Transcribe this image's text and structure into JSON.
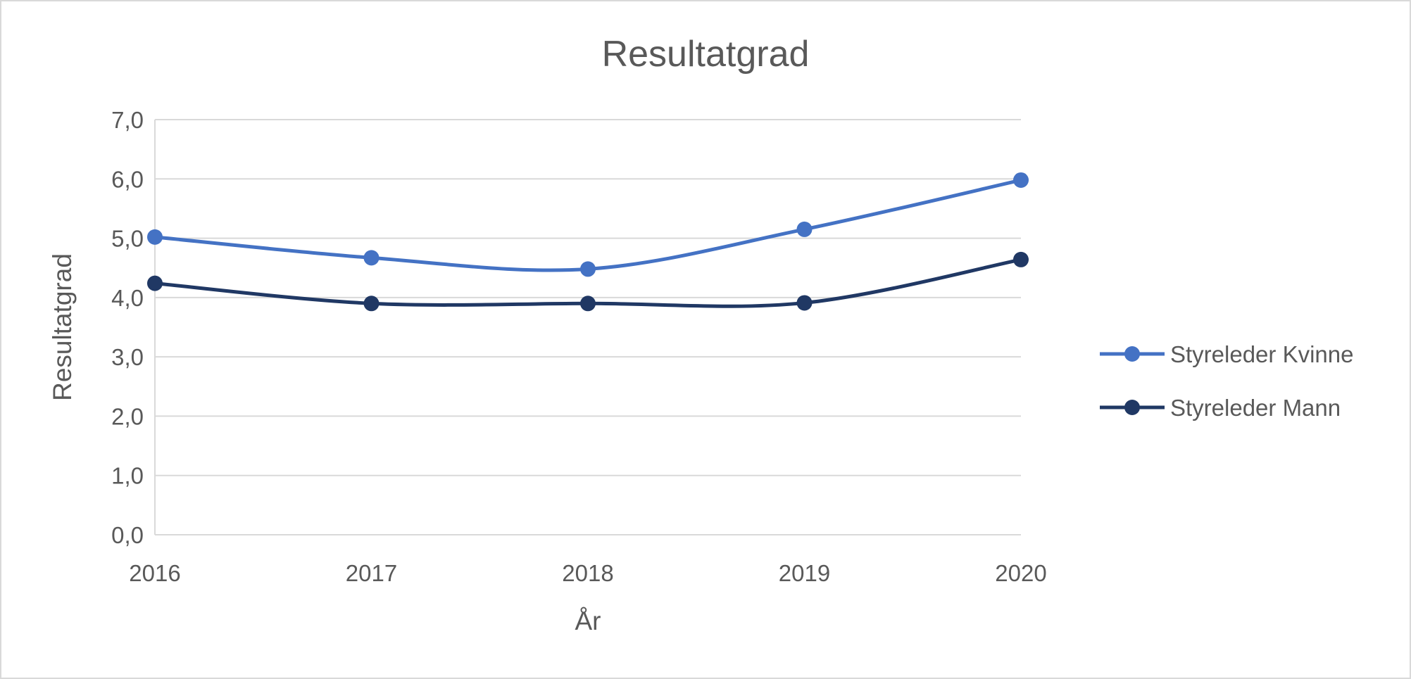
{
  "chart_data": {
    "type": "line",
    "title": "Resultatgrad",
    "xlabel": "År",
    "ylabel": "Resultatgrad",
    "x": [
      "2016",
      "2017",
      "2018",
      "2019",
      "2020"
    ],
    "ylim": [
      0,
      7
    ],
    "y_ticks": [
      "0,0",
      "1,0",
      "2,0",
      "3,0",
      "4,0",
      "5,0",
      "6,0",
      "7,0"
    ],
    "grid": true,
    "smooth": true,
    "legend_position": "right",
    "series": [
      {
        "name": "Styreleder Kvinne",
        "color": "#4472c4",
        "values": [
          5.02,
          4.67,
          4.48,
          5.15,
          5.98
        ]
      },
      {
        "name": "Styreleder Mann",
        "color": "#203864",
        "values": [
          4.24,
          3.9,
          3.9,
          3.91,
          4.64
        ]
      }
    ]
  }
}
